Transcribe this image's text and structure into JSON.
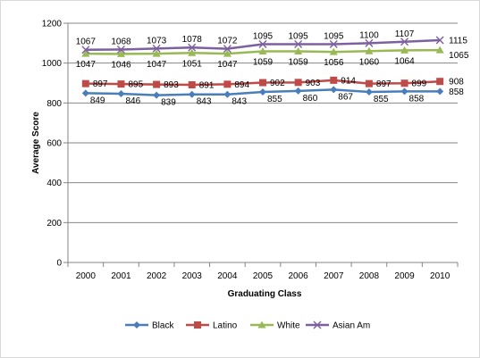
{
  "chart_data": {
    "type": "line",
    "title": "",
    "xlabel": "Graduating Class",
    "ylabel": "Average Score",
    "categories": [
      "2000",
      "2001",
      "2002",
      "2003",
      "2004",
      "2005",
      "2006",
      "2007",
      "2008",
      "2009",
      "2010"
    ],
    "ylim": [
      0,
      1200
    ],
    "yticks": [
      "0",
      "200",
      "400",
      "600",
      "800",
      "1000",
      "1200"
    ],
    "grid": true,
    "legend_position": "bottom",
    "series": [
      {
        "name": "Black",
        "color": "#4a7ebb",
        "marker": "diamond",
        "values": [
          849,
          846,
          839,
          843,
          843,
          855,
          860,
          867,
          855,
          858,
          858
        ],
        "labels": [
          "849",
          "846",
          "839",
          "843",
          "843",
          "855",
          "860",
          "867",
          "855",
          "858",
          "858"
        ]
      },
      {
        "name": "Latino",
        "color": "#be4b48",
        "marker": "square",
        "values": [
          897,
          895,
          893,
          891,
          894,
          902,
          903,
          914,
          897,
          899,
          908
        ],
        "labels": [
          "897",
          "895",
          "893",
          "891",
          "894",
          "902",
          "903",
          "914",
          "897",
          "899",
          "908"
        ]
      },
      {
        "name": "White",
        "color": "#98b954",
        "marker": "triangle",
        "values": [
          1047,
          1046,
          1047,
          1051,
          1047,
          1059,
          1059,
          1056,
          1060,
          1064,
          1065
        ],
        "labels": [
          "1047",
          "1046",
          "1047",
          "1051",
          "1047",
          "1059",
          "1059",
          "1056",
          "1060",
          "1064",
          "1065"
        ]
      },
      {
        "name": "Asian Am",
        "color": "#7d60a0",
        "marker": "x",
        "values": [
          1067,
          1068,
          1073,
          1078,
          1072,
          1095,
          1095,
          1095,
          1100,
          1107,
          1115
        ],
        "labels": [
          "1067",
          "1068",
          "1073",
          "1078",
          "1072",
          "1095",
          "1095",
          "1095",
          "1100",
          "1107",
          "1115"
        ]
      }
    ]
  }
}
